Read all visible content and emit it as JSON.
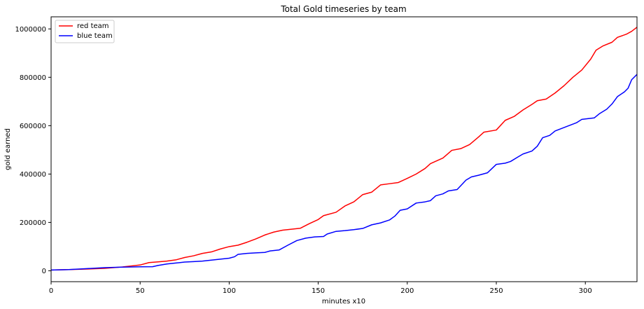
{
  "chart_data": {
    "type": "line",
    "title": "Total Gold timeseries by team",
    "xlabel": "minutes x10",
    "ylabel": "gold earned",
    "xlim": [
      0,
      329
    ],
    "ylim": [
      -45000,
      1050000
    ],
    "x_ticks": [
      0,
      50,
      100,
      150,
      200,
      250,
      300
    ],
    "y_ticks": [
      0,
      200000,
      400000,
      600000,
      800000,
      1000000
    ],
    "grid": false,
    "legend_position": "top-left",
    "series": [
      {
        "name": "red team",
        "color": "#ff0000",
        "points": [
          [
            0,
            3000
          ],
          [
            10,
            5000
          ],
          [
            20,
            7000
          ],
          [
            30,
            10000
          ],
          [
            40,
            16000
          ],
          [
            45,
            20000
          ],
          [
            50,
            24000
          ],
          [
            55,
            34000
          ],
          [
            60,
            37000
          ],
          [
            65,
            40000
          ],
          [
            70,
            45000
          ],
          [
            75,
            55000
          ],
          [
            80,
            62000
          ],
          [
            85,
            72000
          ],
          [
            90,
            78000
          ],
          [
            95,
            90000
          ],
          [
            100,
            100000
          ],
          [
            105,
            106000
          ],
          [
            110,
            118000
          ],
          [
            115,
            132000
          ],
          [
            120,
            148000
          ],
          [
            125,
            160000
          ],
          [
            130,
            168000
          ],
          [
            135,
            172000
          ],
          [
            140,
            176000
          ],
          [
            145,
            195000
          ],
          [
            150,
            212000
          ],
          [
            153,
            228000
          ],
          [
            160,
            242000
          ],
          [
            165,
            268000
          ],
          [
            170,
            285000
          ],
          [
            175,
            315000
          ],
          [
            180,
            325000
          ],
          [
            185,
            355000
          ],
          [
            190,
            360000
          ],
          [
            195,
            365000
          ],
          [
            200,
            382000
          ],
          [
            205,
            400000
          ],
          [
            210,
            423000
          ],
          [
            213,
            443000
          ],
          [
            220,
            466000
          ],
          [
            225,
            498000
          ],
          [
            230,
            505000
          ],
          [
            235,
            522000
          ],
          [
            240,
            553000
          ],
          [
            243,
            573000
          ],
          [
            250,
            582000
          ],
          [
            255,
            622000
          ],
          [
            260,
            638000
          ],
          [
            265,
            665000
          ],
          [
            270,
            688000
          ],
          [
            273,
            703000
          ],
          [
            278,
            710000
          ],
          [
            283,
            735000
          ],
          [
            288,
            765000
          ],
          [
            293,
            800000
          ],
          [
            298,
            830000
          ],
          [
            303,
            875000
          ],
          [
            306,
            912000
          ],
          [
            310,
            930000
          ],
          [
            315,
            945000
          ],
          [
            318,
            965000
          ],
          [
            323,
            978000
          ],
          [
            326,
            990000
          ],
          [
            329,
            1007000
          ]
        ]
      },
      {
        "name": "blue team",
        "color": "#0000ff",
        "points": [
          [
            0,
            3000
          ],
          [
            10,
            5000
          ],
          [
            20,
            9000
          ],
          [
            30,
            13000
          ],
          [
            40,
            15000
          ],
          [
            45,
            16000
          ],
          [
            50,
            16500
          ],
          [
            57,
            17000
          ],
          [
            60,
            22000
          ],
          [
            65,
            28000
          ],
          [
            70,
            32000
          ],
          [
            75,
            36000
          ],
          [
            80,
            38000
          ],
          [
            85,
            40000
          ],
          [
            90,
            44000
          ],
          [
            95,
            48000
          ],
          [
            100,
            52000
          ],
          [
            103,
            58000
          ],
          [
            105,
            68000
          ],
          [
            110,
            72000
          ],
          [
            115,
            74000
          ],
          [
            120,
            76000
          ],
          [
            123,
            82000
          ],
          [
            128,
            86000
          ],
          [
            133,
            106000
          ],
          [
            138,
            125000
          ],
          [
            143,
            135000
          ],
          [
            148,
            140000
          ],
          [
            153,
            142000
          ],
          [
            155,
            152000
          ],
          [
            160,
            163000
          ],
          [
            165,
            166000
          ],
          [
            170,
            170000
          ],
          [
            175,
            175000
          ],
          [
            180,
            190000
          ],
          [
            185,
            198000
          ],
          [
            190,
            210000
          ],
          [
            193,
            226000
          ],
          [
            196,
            250000
          ],
          [
            200,
            256000
          ],
          [
            205,
            280000
          ],
          [
            210,
            285000
          ],
          [
            213,
            290000
          ],
          [
            216,
            310000
          ],
          [
            220,
            318000
          ],
          [
            223,
            330000
          ],
          [
            228,
            336000
          ],
          [
            233,
            375000
          ],
          [
            236,
            388000
          ],
          [
            240,
            395000
          ],
          [
            245,
            405000
          ],
          [
            250,
            440000
          ],
          [
            255,
            445000
          ],
          [
            258,
            452000
          ],
          [
            262,
            470000
          ],
          [
            265,
            483000
          ],
          [
            270,
            495000
          ],
          [
            273,
            515000
          ],
          [
            276,
            550000
          ],
          [
            280,
            560000
          ],
          [
            283,
            578000
          ],
          [
            290,
            598000
          ],
          [
            295,
            612000
          ],
          [
            298,
            626000
          ],
          [
            305,
            632000
          ],
          [
            308,
            650000
          ],
          [
            312,
            668000
          ],
          [
            315,
            690000
          ],
          [
            318,
            720000
          ],
          [
            322,
            740000
          ],
          [
            324,
            755000
          ],
          [
            326,
            790000
          ],
          [
            329,
            812000
          ]
        ]
      }
    ]
  }
}
